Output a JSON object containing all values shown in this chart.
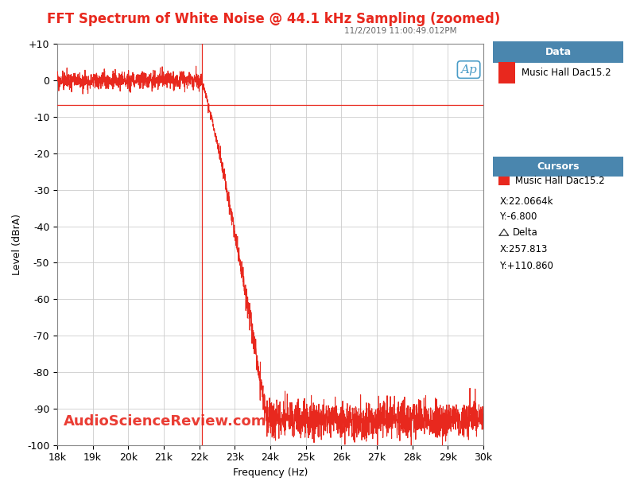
{
  "title": "FFT Spectrum of White Noise @ 44.1 kHz Sampling (zoomed)",
  "subtitle": "11/2/2019 11:00:49.012PM",
  "xlabel": "Frequency (Hz)",
  "ylabel": "Level (dBrA)",
  "xlim": [
    18000,
    30000
  ],
  "ylim": [
    -100,
    10
  ],
  "yticks": [
    10,
    0,
    -10,
    -20,
    -30,
    -40,
    -50,
    -60,
    -70,
    -80,
    -90,
    -100
  ],
  "xtick_labels": [
    "18k",
    "19k",
    "20k",
    "21k",
    "22k",
    "23k",
    "24k",
    "25k",
    "26k",
    "27k",
    "28k",
    "29k",
    "30k"
  ],
  "xtick_vals": [
    18000,
    19000,
    20000,
    21000,
    22000,
    23000,
    24000,
    25000,
    26000,
    27000,
    28000,
    29000,
    30000
  ],
  "line_color": "#e8281e",
  "hline_y": -6.8,
  "vline_x": 22066.4,
  "title_color": "#e8281e",
  "subtitle_color": "#666666",
  "grid_color": "#cccccc",
  "bg_color": "#ffffff",
  "data_legend_title": "Data",
  "data_legend_label": "Music Hall Dac15.2",
  "cursors_legend_title": "Cursors",
  "cursors_legend_label": "Music Hall Dac15.2",
  "cursor_x_str": "X:22.0664k",
  "cursor_y_str": "Y:-6.800",
  "delta_x_str": "X:257.813",
  "delta_y_str": "Y:+110.860",
  "watermark": "AudioScienceReview.com",
  "ap_logo_color": "#4a9cc7",
  "legend_header_color": "#4a86ae",
  "noise_floor": -93,
  "noise_ripple": 2.5,
  "passband_noise_amp": 1.2,
  "cutoff_start": 22050,
  "cutoff_end": 23900
}
